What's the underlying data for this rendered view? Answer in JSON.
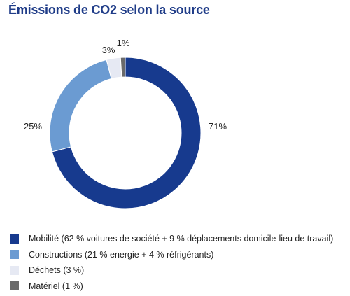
{
  "title": "Émissions de CO2 selon la source",
  "chart_data": {
    "type": "pie",
    "variant": "donut",
    "title": "Émissions de CO2 selon la source",
    "slices": [
      {
        "value": 71,
        "label": "71%",
        "color": "#173a8e",
        "legend": "Mobilité (62 % voitures de société + 9 % déplacements domicile-lieu de travail)"
      },
      {
        "value": 25,
        "label": "25%",
        "color": "#6b9bd2",
        "legend": "Constructions (21 % energie + 4 % réfrigérants)"
      },
      {
        "value": 3,
        "label": "3%",
        "color": "#e6e9f3",
        "legend": "Déchets (3 %)"
      },
      {
        "value": 1,
        "label": "1%",
        "color": "#6a6a6a",
        "legend": "Matériel (1 %)"
      }
    ],
    "legend_position": "bottom-left"
  }
}
